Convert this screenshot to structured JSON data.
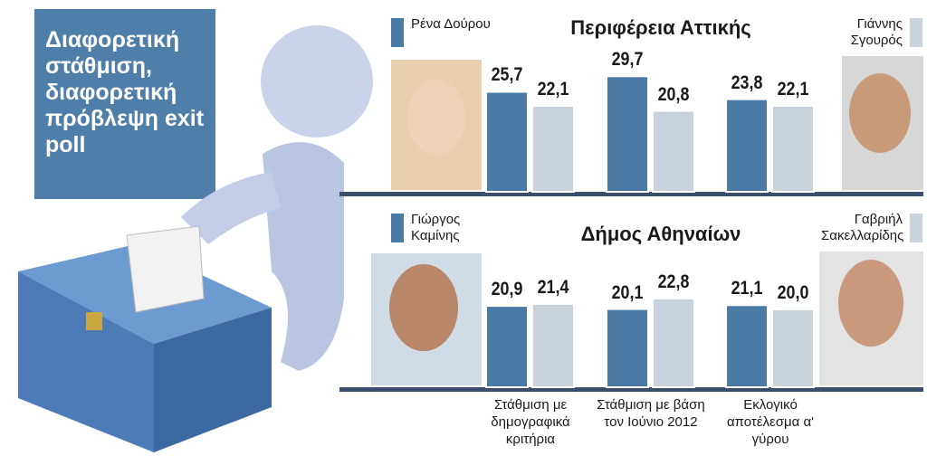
{
  "headline": "Διαφορετική στάθμιση, διαφορετική πρόβλεψη exit poll",
  "chart_data": [
    {
      "type": "bar",
      "title": "Περιφέρεια Αττικής",
      "categories": [
        null,
        null,
        null
      ],
      "ylim": [
        0,
        30
      ],
      "series": [
        {
          "name": "Ρένα Δούρου",
          "color": "#4b7aa5",
          "values": [
            25.7,
            29.7,
            23.8
          ],
          "value_labels": [
            "25,7",
            "29,7",
            "23,8"
          ]
        },
        {
          "name": "Γιάννης Σγουρός",
          "color": "#c8d2dc",
          "values": [
            22.1,
            20.8,
            22.1
          ],
          "value_labels": [
            "22,1",
            "20,8",
            "22,1"
          ]
        }
      ]
    },
    {
      "type": "bar",
      "title": "Δήμος Αθηναίων",
      "categories": [
        "Στάθμιση με δημογραφικά κριτήρια",
        "Στάθμιση με βάση τον Ιούνιο 2012",
        "Εκλογικό αποτέλεσμα α' γύρου"
      ],
      "ylim": [
        0,
        30
      ],
      "series": [
        {
          "name": "Γιώργος Καμίνης",
          "color": "#4b7aa5",
          "values": [
            20.9,
            20.1,
            21.1
          ],
          "value_labels": [
            "20,9",
            "20,1",
            "21,1"
          ]
        },
        {
          "name": "Γαβριήλ Σακελλαρίδης",
          "color": "#c8d2dc",
          "values": [
            21.4,
            22.8,
            20.0
          ],
          "value_labels": [
            "21,4",
            "22,8",
            "20,0"
          ]
        }
      ]
    }
  ]
}
